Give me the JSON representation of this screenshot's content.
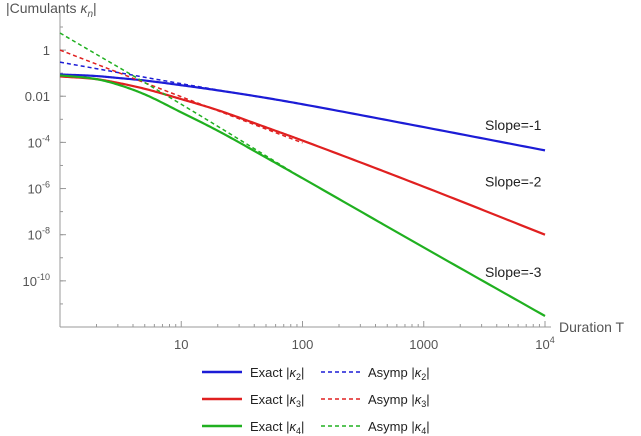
{
  "chart_data": {
    "type": "line",
    "xscale": "log",
    "yscale": "log",
    "xlim": [
      1,
      10000
    ],
    "ylim": [
      1e-12,
      30
    ],
    "xlabel": "Duration T",
    "ylabel": "|Cumulants κn|",
    "ylabel_main": "|Cumulants ",
    "ylabel_sym": "κ",
    "ylabel_sub": "n",
    "ylabel_end": "|",
    "x_ticks": [
      {
        "value": 10,
        "label": "10"
      },
      {
        "value": 100,
        "label": "100"
      },
      {
        "value": 1000,
        "label": "1000"
      },
      {
        "value": 10000,
        "label": "10",
        "exp": "4"
      }
    ],
    "y_ticks": [
      {
        "value": 1,
        "label": "1"
      },
      {
        "value": 0.01,
        "label": "0.01"
      },
      {
        "value": 0.0001,
        "label": "10",
        "exp": "-4"
      },
      {
        "value": 1e-06,
        "label": "10",
        "exp": "-6"
      },
      {
        "value": 1e-08,
        "label": "10",
        "exp": "-8"
      },
      {
        "value": 1e-10,
        "label": "10",
        "exp": "-10"
      }
    ],
    "series": [
      {
        "name": "Exact |κ2|",
        "legend_main": "Exact |",
        "legend_sym": "κ",
        "legend_sub": "2",
        "legend_end": "|",
        "color": "#1c1cd6",
        "dash": false,
        "x": [
          1,
          2,
          3,
          5,
          10,
          20,
          50,
          100,
          1000,
          10000
        ],
        "y": [
          0.088,
          0.075,
          0.062,
          0.048,
          0.03,
          0.018,
          0.0085,
          0.0045,
          0.00046,
          4.5e-05
        ]
      },
      {
        "name": "Exact |κ3|",
        "legend_main": "Exact |",
        "legend_sym": "κ",
        "legend_sub": "3",
        "legend_end": "|",
        "color": "#e02020",
        "dash": false,
        "x": [
          1,
          2,
          3,
          5,
          10,
          20,
          50,
          100,
          1000,
          10000
        ],
        "y": [
          0.072,
          0.055,
          0.038,
          0.021,
          0.0075,
          0.0025,
          0.00045,
          0.00012,
          1.2e-06,
          1e-08
        ]
      },
      {
        "name": "Exact |κ4|",
        "legend_main": "Exact |",
        "legend_sym": "κ",
        "legend_sub": "4",
        "legend_end": "|",
        "color": "#20b020",
        "dash": false,
        "x": [
          1,
          2,
          3,
          5,
          10,
          20,
          50,
          100,
          1000,
          10000
        ],
        "y": [
          0.08,
          0.055,
          0.032,
          0.012,
          0.002,
          0.00032,
          2.2e-05,
          2.8e-06,
          2.8e-09,
          3e-12
        ]
      },
      {
        "name": "Asymp |κ2|",
        "legend_main": "Asymp |",
        "legend_sym": "κ",
        "legend_sub": "2",
        "legend_end": "|",
        "color": "#1c1cd6",
        "dash": true,
        "x": [
          1,
          10,
          100
        ],
        "y": [
          0.3,
          0.035,
          0.0045
        ]
      },
      {
        "name": "Asymp |κ3|",
        "legend_main": "Asymp |",
        "legend_sym": "κ",
        "legend_sub": "3",
        "legend_end": "|",
        "color": "#e02020",
        "dash": true,
        "x": [
          1,
          10,
          100
        ],
        "y": [
          1.0,
          0.0095,
          9.5e-05
        ]
      },
      {
        "name": "Asymp |κ4|",
        "legend_main": "Asymp |",
        "legend_sym": "κ",
        "legend_sub": "4",
        "legend_end": "|",
        "color": "#20b020",
        "dash": true,
        "x": [
          1,
          10,
          100
        ],
        "y": [
          5.5,
          0.0045,
          2.8e-06
        ]
      }
    ],
    "annotations": [
      {
        "text": "Slope=-1",
        "x": 3200,
        "y": 0.00035
      },
      {
        "text": "Slope=-2",
        "x": 3200,
        "y": 1.2e-06
      },
      {
        "text": "Slope=-3",
        "x": 3200,
        "y": 1.5e-10
      }
    ],
    "grid": false,
    "legend_position": "bottom"
  }
}
